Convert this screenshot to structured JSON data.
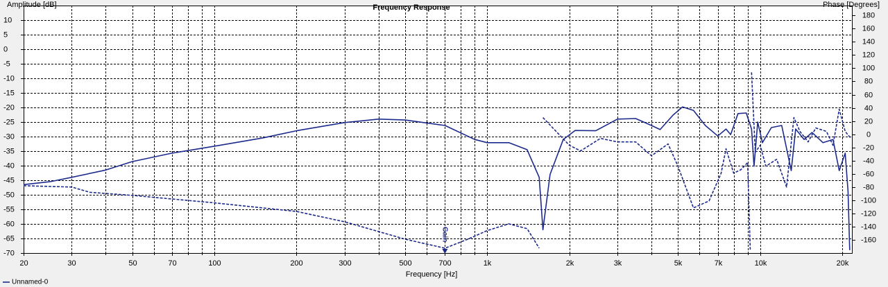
{
  "chart_data": {
    "type": "line",
    "title": "Frequency Response",
    "ylabel": "Amplitude [dB]",
    "y2label": "Phase [Degrees]",
    "xlabel": "Frequency [Hz]",
    "xscale": "log",
    "grid": true,
    "xlim": [
      20,
      21700
    ],
    "ylim": [
      -70,
      15
    ],
    "y2lim": [
      -180,
      195
    ],
    "xticks": [
      20,
      30,
      50,
      70,
      100,
      200,
      300,
      500,
      700,
      {
        "value": 1000,
        "label": "1k"
      },
      {
        "value": 2000,
        "label": "2k"
      },
      {
        "value": 3000,
        "label": "3k"
      },
      {
        "value": 5000,
        "label": "5k"
      },
      {
        "value": 7000,
        "label": "7k"
      },
      {
        "value": 10000,
        "label": "10k"
      },
      {
        "value": 20000,
        "label": "20k"
      }
    ],
    "xminorticks": [
      40,
      60,
      80,
      90,
      400,
      600,
      800,
      900,
      4000,
      6000,
      8000,
      9000
    ],
    "yticks": [
      10,
      5,
      0,
      -5,
      -10,
      -15,
      -20,
      -25,
      -30,
      -35,
      -40,
      -45,
      -50,
      -55,
      -60,
      -65,
      -70
    ],
    "y2ticks": [
      180,
      160,
      140,
      120,
      100,
      80,
      60,
      40,
      20,
      0,
      -20,
      -40,
      -60,
      -80,
      -100,
      -120,
      -140,
      -160
    ],
    "annotations": [
      {
        "text": "Gain",
        "x": 700
      }
    ],
    "series": [
      {
        "name": "Unnamed-0",
        "color": "#1c2a8c",
        "dash": false,
        "x": [
          20,
          25,
          30,
          40,
          50,
          70,
          100,
          150,
          200,
          300,
          400,
          500,
          700,
          900,
          1000,
          1200,
          1400,
          1550,
          1600,
          1700,
          1900,
          2100,
          2500,
          3000,
          3500,
          4000,
          4300,
          4800,
          5200,
          5700,
          6300,
          7000,
          7500,
          7800,
          8300,
          8900,
          9300,
          9500,
          9800,
          10200,
          11000,
          12000,
          13000,
          13500,
          14500,
          15500,
          17000,
          18500,
          19500,
          20500,
          21000,
          21300
        ],
        "values": [
          -46.5,
          -45.5,
          -44,
          -41.5,
          -38.6,
          -35.7,
          -33.3,
          -30.5,
          -28,
          -25.2,
          -24,
          -24.3,
          -26.2,
          -31,
          -32.1,
          -32.1,
          -34.5,
          -44,
          -62,
          -43,
          -31,
          -27.9,
          -28,
          -24,
          -23.8,
          -26.2,
          -27.6,
          -22.6,
          -19.8,
          -21,
          -26.2,
          -29.8,
          -27.4,
          -29.3,
          -22.1,
          -21.9,
          -27.4,
          -40.2,
          -25,
          -32.1,
          -26.9,
          -26.2,
          -41.7,
          -27.4,
          -31,
          -28.6,
          -32.1,
          -31,
          -41.7,
          -35.7,
          -48.8,
          -69
        ]
      },
      {
        "color": "#1c2a8c",
        "dash": true,
        "axis": "y2",
        "x": [
          20,
          30,
          35,
          50,
          100,
          200,
          300,
          500,
          700,
          850,
          1000,
          1200,
          1400,
          1550,
          1580,
          1600,
          2000,
          2200,
          2600,
          3000,
          3500,
          4000,
          4600,
          5000,
          5700,
          6500,
          7200,
          7500,
          8000,
          8500,
          9000,
          9200,
          9250,
          9300,
          9600,
          10000,
          10500,
          11500,
          12500,
          13300,
          14000,
          15000,
          16000,
          17500,
          18500,
          19500,
          20500,
          21500
        ],
        "values": [
          -78,
          -80,
          -88,
          -92.6,
          -104,
          -117,
          -132.6,
          -159,
          -172.6,
          -159,
          -146,
          -135.8,
          -143,
          -172.6,
          null,
          25.3,
          -16.8,
          -25.3,
          -6.3,
          -11.6,
          -11.6,
          -32.6,
          -14.7,
          -48.4,
          -111.6,
          -101,
          -59,
          -22,
          -59,
          -53.7,
          -43,
          -174.7,
          null,
          93.7,
          -27.4,
          -16.8,
          -48.4,
          -38,
          -80,
          25.3,
          4.2,
          -11.6,
          9.5,
          4.2,
          -16.8,
          37.9,
          4.2,
          -6.3
        ]
      }
    ]
  }
}
